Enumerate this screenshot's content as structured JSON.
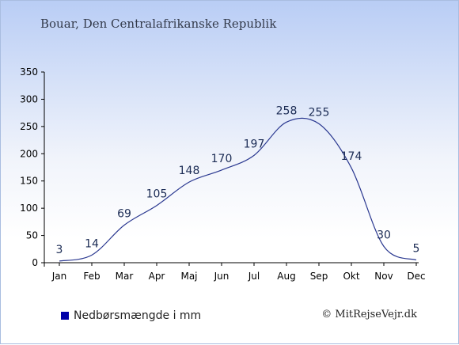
{
  "header": {
    "title": "Bouar, Den Centralafrikanske Republik"
  },
  "legend": {
    "label": "Nedbørsmængde i mm"
  },
  "footer": {
    "credit": "© MitRejseVejr.dk"
  },
  "colors": {
    "line": "#2a3890",
    "legend_swatch": "#0000a8",
    "label": "#1c2c55"
  },
  "chart_data": {
    "type": "line",
    "categories": [
      "Jan",
      "Feb",
      "Mar",
      "Apr",
      "Maj",
      "Jun",
      "Jul",
      "Aug",
      "Sep",
      "Okt",
      "Nov",
      "Dec"
    ],
    "series": [
      {
        "name": "Nedbørsmængde i mm",
        "values": [
          3,
          14,
          69,
          105,
          148,
          170,
          197,
          258,
          255,
          174,
          30,
          5
        ]
      }
    ],
    "ylim": [
      0,
      350
    ],
    "yticks": [
      0,
      50,
      100,
      150,
      200,
      250,
      300,
      350
    ],
    "grid": false,
    "legend_position": "bottom-left"
  }
}
